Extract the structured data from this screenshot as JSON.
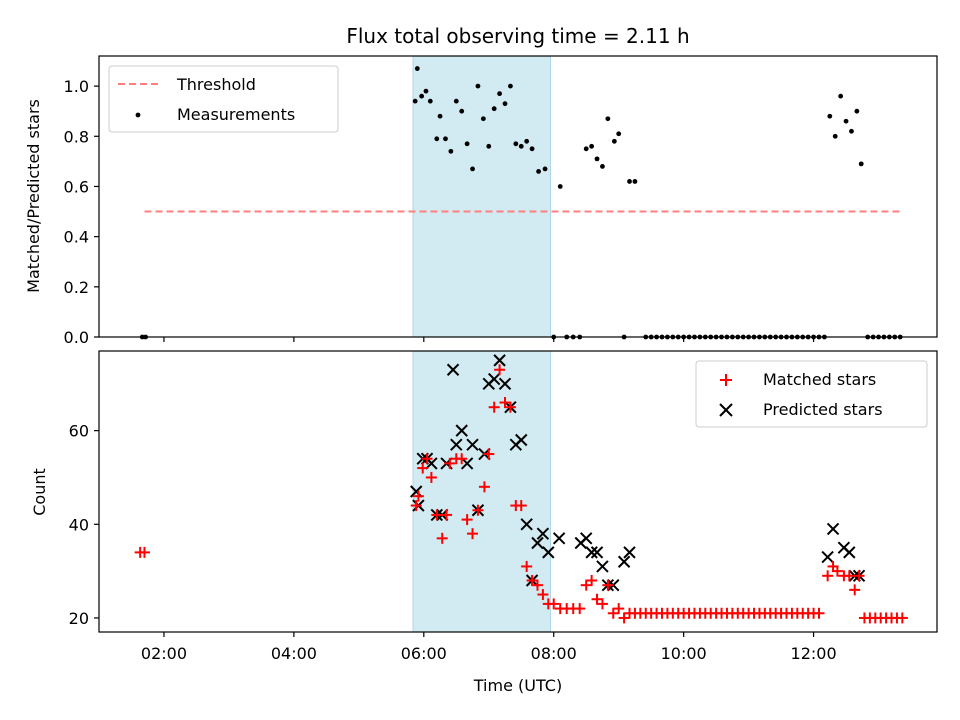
{
  "colors": {
    "threshold": "#ff7f7f",
    "measurement": "#000000",
    "matched": "#ff0000",
    "predicted": "#000000",
    "shade": "#add8e6"
  },
  "chart_data": [
    {
      "type": "scatter",
      "title": "Flux total observing time = 2.11 h",
      "ylabel": "Matched/Predicted stars",
      "xlabel": "",
      "xlim": [
        "01:00",
        "13:54"
      ],
      "ylim": [
        0,
        1.12
      ],
      "yticks": [
        "0.0",
        "0.2",
        "0.4",
        "0.6",
        "0.8",
        "1.0"
      ],
      "shaded_span": [
        "05:50",
        "07:57"
      ],
      "legend_position": "upper left",
      "threshold": {
        "name": "Threshold",
        "y": 0.5,
        "x": [
          "01:42",
          "13:20"
        ]
      },
      "series": [
        {
          "name": "Measurements",
          "marker": "dot",
          "points": [
            [
              "01:40",
              0
            ],
            [
              "01:43",
              0
            ],
            [
              "05:52",
              0.94
            ],
            [
              "05:54",
              1.07
            ],
            [
              "05:58",
              0.96
            ],
            [
              "06:02",
              0.98
            ],
            [
              "06:06",
              0.94
            ],
            [
              "06:12",
              0.79
            ],
            [
              "06:15",
              0.88
            ],
            [
              "06:20",
              0.79
            ],
            [
              "06:25",
              0.74
            ],
            [
              "06:30",
              0.94
            ],
            [
              "06:35",
              0.9
            ],
            [
              "06:40",
              0.77
            ],
            [
              "06:45",
              0.67
            ],
            [
              "06:50",
              1.0
            ],
            [
              "06:55",
              0.87
            ],
            [
              "07:00",
              0.76
            ],
            [
              "07:05",
              0.91
            ],
            [
              "07:10",
              0.97
            ],
            [
              "07:15",
              0.93
            ],
            [
              "07:20",
              1.0
            ],
            [
              "07:25",
              0.77
            ],
            [
              "07:30",
              0.76
            ],
            [
              "07:35",
              0.78
            ],
            [
              "07:40",
              0.75
            ],
            [
              "07:46",
              0.66
            ],
            [
              "07:52",
              0.67
            ],
            [
              "08:00",
              0
            ],
            [
              "08:06",
              0.6
            ],
            [
              "08:12",
              0
            ],
            [
              "08:18",
              0
            ],
            [
              "08:24",
              0
            ],
            [
              "08:30",
              0.75
            ],
            [
              "08:35",
              0.76
            ],
            [
              "08:40",
              0.71
            ],
            [
              "08:45",
              0.68
            ],
            [
              "08:50",
              0.87
            ],
            [
              "08:56",
              0.78
            ],
            [
              "09:00",
              0.81
            ],
            [
              "09:05",
              0
            ],
            [
              "09:10",
              0.62
            ],
            [
              "09:15",
              0.62
            ],
            [
              "09:25",
              0
            ],
            [
              "09:30",
              0
            ],
            [
              "09:35",
              0
            ],
            [
              "09:40",
              0
            ],
            [
              "09:45",
              0
            ],
            [
              "09:50",
              0
            ],
            [
              "09:55",
              0
            ],
            [
              "10:00",
              0
            ],
            [
              "10:05",
              0
            ],
            [
              "10:10",
              0
            ],
            [
              "10:15",
              0
            ],
            [
              "10:20",
              0
            ],
            [
              "10:25",
              0
            ],
            [
              "10:30",
              0
            ],
            [
              "10:35",
              0
            ],
            [
              "10:40",
              0
            ],
            [
              "10:45",
              0
            ],
            [
              "10:50",
              0
            ],
            [
              "10:55",
              0
            ],
            [
              "11:00",
              0
            ],
            [
              "11:05",
              0
            ],
            [
              "11:10",
              0
            ],
            [
              "11:15",
              0
            ],
            [
              "11:20",
              0
            ],
            [
              "11:25",
              0
            ],
            [
              "11:30",
              0
            ],
            [
              "11:35",
              0
            ],
            [
              "11:40",
              0
            ],
            [
              "11:45",
              0
            ],
            [
              "11:50",
              0
            ],
            [
              "11:55",
              0
            ],
            [
              "12:00",
              0
            ],
            [
              "12:05",
              0
            ],
            [
              "12:10",
              0
            ],
            [
              "12:15",
              0.88
            ],
            [
              "12:20",
              0.8
            ],
            [
              "12:25",
              0.96
            ],
            [
              "12:30",
              0.86
            ],
            [
              "12:35",
              0.82
            ],
            [
              "12:40",
              0.9
            ],
            [
              "12:44",
              0.69
            ],
            [
              "12:50",
              0
            ],
            [
              "12:55",
              0
            ],
            [
              "13:00",
              0
            ],
            [
              "13:05",
              0
            ],
            [
              "13:10",
              0
            ],
            [
              "13:15",
              0
            ],
            [
              "13:20",
              0
            ]
          ]
        }
      ]
    },
    {
      "type": "scatter",
      "title": "",
      "ylabel": "Count",
      "xlabel": "Time (UTC)",
      "xlim": [
        "01:00",
        "13:54"
      ],
      "ylim": [
        17,
        77
      ],
      "yticks": [
        "20",
        "40",
        "60"
      ],
      "xticks": [
        "02:00",
        "04:00",
        "06:00",
        "08:00",
        "10:00",
        "12:00"
      ],
      "shaded_span": [
        "05:50",
        "07:57"
      ],
      "legend_position": "upper right",
      "series": [
        {
          "name": "Matched stars",
          "marker": "plus",
          "points": [
            [
              "01:38",
              34
            ],
            [
              "01:42",
              34
            ],
            [
              "05:53",
              44
            ],
            [
              "05:55",
              46
            ],
            [
              "05:59",
              52
            ],
            [
              "06:03",
              54
            ],
            [
              "06:07",
              50
            ],
            [
              "06:12",
              42
            ],
            [
              "06:17",
              37
            ],
            [
              "06:21",
              42
            ],
            [
              "06:24",
              53
            ],
            [
              "06:30",
              54
            ],
            [
              "06:35",
              54
            ],
            [
              "06:40",
              41
            ],
            [
              "06:45",
              38
            ],
            [
              "06:50",
              43
            ],
            [
              "06:56",
              48
            ],
            [
              "07:00",
              55
            ],
            [
              "07:05",
              65
            ],
            [
              "07:10",
              73
            ],
            [
              "07:15",
              66
            ],
            [
              "07:20",
              65
            ],
            [
              "07:25",
              44
            ],
            [
              "07:30",
              44
            ],
            [
              "07:35",
              31
            ],
            [
              "07:40",
              28
            ],
            [
              "07:45",
              27
            ],
            [
              "07:50",
              25
            ],
            [
              "07:55",
              23
            ],
            [
              "08:00",
              23
            ],
            [
              "08:06",
              22
            ],
            [
              "08:12",
              22
            ],
            [
              "08:18",
              22
            ],
            [
              "08:24",
              22
            ],
            [
              "08:30",
              27
            ],
            [
              "08:35",
              28
            ],
            [
              "08:40",
              24
            ],
            [
              "08:45",
              23
            ],
            [
              "08:50",
              27
            ],
            [
              "08:55",
              21
            ],
            [
              "09:00",
              22
            ],
            [
              "09:05",
              20
            ],
            [
              "09:10",
              21
            ],
            [
              "09:15",
              21
            ],
            [
              "09:20",
              21
            ],
            [
              "09:25",
              21
            ],
            [
              "09:30",
              21
            ],
            [
              "09:35",
              21
            ],
            [
              "09:40",
              21
            ],
            [
              "09:45",
              21
            ],
            [
              "09:50",
              21
            ],
            [
              "09:55",
              21
            ],
            [
              "10:00",
              21
            ],
            [
              "10:05",
              21
            ],
            [
              "10:10",
              21
            ],
            [
              "10:15",
              21
            ],
            [
              "10:20",
              21
            ],
            [
              "10:25",
              21
            ],
            [
              "10:30",
              21
            ],
            [
              "10:35",
              21
            ],
            [
              "10:40",
              21
            ],
            [
              "10:45",
              21
            ],
            [
              "10:50",
              21
            ],
            [
              "10:55",
              21
            ],
            [
              "11:00",
              21
            ],
            [
              "11:05",
              21
            ],
            [
              "11:10",
              21
            ],
            [
              "11:15",
              21
            ],
            [
              "11:20",
              21
            ],
            [
              "11:25",
              21
            ],
            [
              "11:30",
              21
            ],
            [
              "11:35",
              21
            ],
            [
              "11:40",
              21
            ],
            [
              "11:45",
              21
            ],
            [
              "11:50",
              21
            ],
            [
              "11:55",
              21
            ],
            [
              "12:00",
              21
            ],
            [
              "12:05",
              21
            ],
            [
              "12:13",
              29
            ],
            [
              "12:18",
              31
            ],
            [
              "12:22",
              30
            ],
            [
              "12:28",
              29
            ],
            [
              "12:33",
              29
            ],
            [
              "12:38",
              26
            ],
            [
              "12:42",
              29
            ],
            [
              "12:47",
              20
            ],
            [
              "12:52",
              20
            ],
            [
              "12:57",
              20
            ],
            [
              "13:02",
              20
            ],
            [
              "13:07",
              20
            ],
            [
              "13:12",
              20
            ],
            [
              "13:17",
              20
            ],
            [
              "13:22",
              20
            ]
          ]
        },
        {
          "name": "Predicted stars",
          "marker": "x",
          "points": [
            [
              "05:53",
              47
            ],
            [
              "05:55",
              44
            ],
            [
              "05:59",
              54
            ],
            [
              "06:03",
              54
            ],
            [
              "06:07",
              53
            ],
            [
              "06:12",
              42
            ],
            [
              "06:17",
              42
            ],
            [
              "06:21",
              53
            ],
            [
              "06:27",
              73
            ],
            [
              "06:30",
              57
            ],
            [
              "06:35",
              60
            ],
            [
              "06:40",
              53
            ],
            [
              "06:45",
              57
            ],
            [
              "06:50",
              43
            ],
            [
              "06:56",
              55
            ],
            [
              "07:00",
              70
            ],
            [
              "07:05",
              71
            ],
            [
              "07:10",
              75
            ],
            [
              "07:15",
              70
            ],
            [
              "07:20",
              65
            ],
            [
              "07:25",
              57
            ],
            [
              "07:30",
              58
            ],
            [
              "07:35",
              40
            ],
            [
              "07:40",
              28
            ],
            [
              "07:45",
              36
            ],
            [
              "07:50",
              38
            ],
            [
              "07:55",
              34
            ],
            [
              "08:05",
              37
            ],
            [
              "08:25",
              36
            ],
            [
              "08:30",
              37
            ],
            [
              "08:35",
              34
            ],
            [
              "08:40",
              34
            ],
            [
              "08:45",
              31
            ],
            [
              "08:50",
              27
            ],
            [
              "08:55",
              27
            ],
            [
              "09:05",
              32
            ],
            [
              "09:10",
              34
            ],
            [
              "12:13",
              33
            ],
            [
              "12:18",
              39
            ],
            [
              "12:28",
              35
            ],
            [
              "12:33",
              34
            ],
            [
              "12:38",
              29
            ],
            [
              "12:42",
              29
            ]
          ]
        }
      ]
    }
  ]
}
